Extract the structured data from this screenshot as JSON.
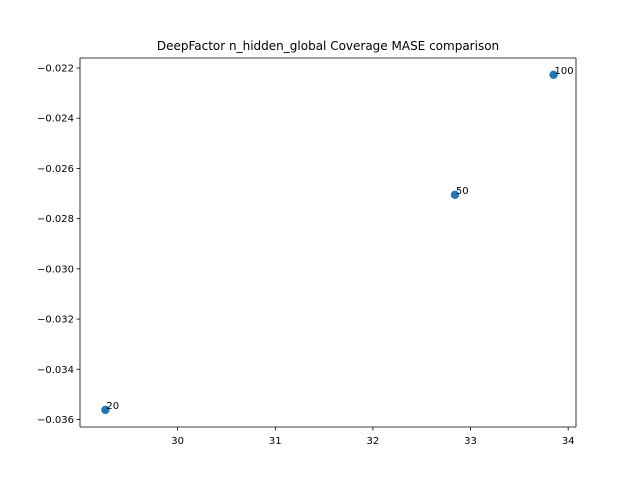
{
  "chart_data": {
    "type": "scatter",
    "title": "DeepFactor n_hidden_global Coverage MASE comparison",
    "xlabel": "",
    "ylabel": "",
    "xlim": [
      29.0,
      34.08
    ],
    "ylim": [
      -0.0363,
      -0.0216
    ],
    "x_ticks": [
      30,
      31,
      32,
      33,
      34
    ],
    "x_tick_labels": [
      "30",
      "31",
      "32",
      "33",
      "34"
    ],
    "y_ticks": [
      -0.022,
      -0.024,
      -0.026,
      -0.028,
      -0.03,
      -0.032,
      -0.034,
      -0.036
    ],
    "y_tick_labels": [
      "−0.022",
      "−0.024",
      "−0.026",
      "−0.028",
      "−0.030",
      "−0.032",
      "−0.034",
      "−0.036"
    ],
    "grid": false,
    "series": [
      {
        "color": "#1f77b4",
        "points": [
          {
            "x": 29.26,
            "y": -0.03562,
            "label": "20"
          },
          {
            "x": 32.84,
            "y": -0.02705,
            "label": "50"
          },
          {
            "x": 33.85,
            "y": -0.02227,
            "label": "100"
          }
        ]
      }
    ]
  }
}
